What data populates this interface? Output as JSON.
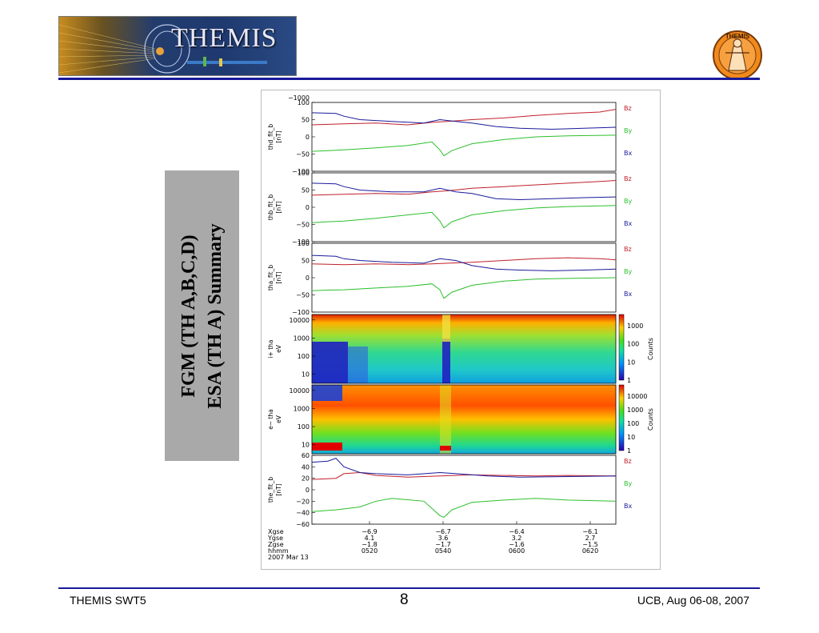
{
  "header": {
    "banner_title": "THEMIS",
    "logo_text": "THEMIS"
  },
  "sidebar_title": {
    "line1": "FGM (TH A,B,C,D)",
    "line2": "ESA (TH A) Summary"
  },
  "footer": {
    "left": "THEMIS SWT5",
    "page": "8",
    "right": "UCB, Aug 06-08, 2007"
  },
  "colors": {
    "bz": "#c0202a",
    "by": "#2cbf2c",
    "bx": "#1a1a9a",
    "rule": "#1a1a9a",
    "side_box": "#a9a9a9"
  },
  "chart_data": {
    "type": "line",
    "panels": [
      {
        "ylabel": [
          "thd_fit_b",
          "[nT]"
        ],
        "ylim": [
          -100,
          100
        ],
        "ticks": [
          {
            "v": 100,
            "t": "100"
          },
          {
            "v": 50,
            "t": "50"
          },
          {
            "v": 0,
            "t": "0"
          },
          {
            "v": -50,
            "t": "−50"
          },
          {
            "v": -100,
            "t": "−100"
          }
        ],
        "top_label": "−1000",
        "legend": [
          "Bz",
          "By",
          "Bx"
        ],
        "series": [
          {
            "name": "Bz",
            "color": "#c0202a",
            "x": [
              0,
              40,
              80,
              120,
              150,
              170,
              200,
              240,
              280,
              320,
              360,
              380
            ],
            "y": [
              35,
              38,
              40,
              35,
              42,
              45,
              50,
              55,
              62,
              68,
              72,
              80
            ]
          },
          {
            "name": "By",
            "color": "#2cbf2c",
            "x": [
              0,
              20,
              40,
              80,
              120,
              150,
              160,
              165,
              175,
              200,
              240,
              280,
              320,
              380
            ],
            "y": [
              -42,
              -40,
              -38,
              -32,
              -25,
              -15,
              -38,
              -55,
              -40,
              -20,
              -8,
              0,
              3,
              5
            ]
          },
          {
            "name": "Bx",
            "color": "#1a1a9a",
            "x": [
              0,
              30,
              40,
              60,
              100,
              140,
              160,
              180,
              200,
              230,
              260,
              300,
              340,
              380
            ],
            "y": [
              70,
              68,
              60,
              50,
              45,
              40,
              50,
              45,
              40,
              30,
              25,
              22,
              25,
              28
            ]
          }
        ]
      },
      {
        "ylabel": [
          "thb_fit_b",
          "[nT]"
        ],
        "ylim": [
          -100,
          100
        ],
        "ticks": [
          {
            "v": 100,
            "t": "100"
          },
          {
            "v": 50,
            "t": "50"
          },
          {
            "v": 0,
            "t": "0"
          },
          {
            "v": -50,
            "t": "−50"
          },
          {
            "v": -100,
            "t": "−100"
          }
        ],
        "legend": [
          "Bz",
          "By",
          "Bx"
        ],
        "series": [
          {
            "name": "Bz",
            "color": "#c0202a",
            "x": [
              0,
              40,
              80,
              120,
              150,
              170,
              200,
              240,
              280,
              320,
              360,
              380
            ],
            "y": [
              35,
              38,
              40,
              38,
              45,
              48,
              55,
              60,
              65,
              70,
              75,
              78
            ]
          },
          {
            "name": "By",
            "color": "#2cbf2c",
            "x": [
              0,
              20,
              40,
              80,
              120,
              150,
              160,
              165,
              175,
              200,
              240,
              280,
              320,
              380
            ],
            "y": [
              -45,
              -42,
              -40,
              -32,
              -22,
              -15,
              -40,
              -60,
              -42,
              -22,
              -10,
              -2,
              2,
              5
            ]
          },
          {
            "name": "Bx",
            "color": "#1a1a9a",
            "x": [
              0,
              30,
              40,
              60,
              100,
              140,
              160,
              180,
              200,
              230,
              260,
              300,
              340,
              380
            ],
            "y": [
              70,
              68,
              60,
              50,
              45,
              45,
              55,
              45,
              40,
              25,
              22,
              25,
              28,
              30
            ]
          }
        ]
      },
      {
        "ylabel": [
          "tha_fit_b",
          "[nT]"
        ],
        "ylim": [
          -100,
          100
        ],
        "ticks": [
          {
            "v": 100,
            "t": "100"
          },
          {
            "v": 50,
            "t": "50"
          },
          {
            "v": 0,
            "t": "0"
          },
          {
            "v": -50,
            "t": "−50"
          },
          {
            "v": -100,
            "t": "−100"
          }
        ],
        "legend": [
          "Bz",
          "By",
          "Bx"
        ],
        "series": [
          {
            "name": "Bz",
            "color": "#c0202a",
            "x": [
              0,
              40,
              80,
              120,
              150,
              170,
              200,
              240,
              280,
              320,
              360,
              380
            ],
            "y": [
              40,
              38,
              40,
              38,
              40,
              42,
              45,
              50,
              55,
              58,
              55,
              52
            ]
          },
          {
            "name": "By",
            "color": "#2cbf2c",
            "x": [
              0,
              20,
              40,
              80,
              120,
              150,
              160,
              165,
              175,
              200,
              240,
              280,
              320,
              380
            ],
            "y": [
              -38,
              -36,
              -35,
              -30,
              -25,
              -18,
              -35,
              -60,
              -42,
              -22,
              -10,
              -4,
              -2,
              0
            ]
          },
          {
            "name": "Bx",
            "color": "#1a1a9a",
            "x": [
              0,
              30,
              40,
              60,
              100,
              140,
              160,
              180,
              200,
              230,
              260,
              300,
              340,
              380
            ],
            "y": [
              65,
              62,
              55,
              50,
              45,
              42,
              55,
              50,
              35,
              25,
              22,
              20,
              22,
              25
            ]
          }
        ]
      },
      {
        "type": "heatmap",
        "ylabel": [
          "i+ tha",
          "eV"
        ],
        "ticks": [
          {
            "v": 10000,
            "t": "10000"
          },
          {
            "v": 1000,
            "t": "1000"
          },
          {
            "v": 100,
            "t": "100"
          },
          {
            "v": 10,
            "t": "10"
          }
        ],
        "colorbar": {
          "label": "Counts",
          "ticks": [
            "1000",
            "100",
            "10",
            "1"
          ]
        }
      },
      {
        "type": "heatmap",
        "ylabel": [
          "e− tha",
          "eV"
        ],
        "ticks": [
          {
            "v": 10000,
            "t": "10000"
          },
          {
            "v": 1000,
            "t": "1000"
          },
          {
            "v": 100,
            "t": "100"
          },
          {
            "v": 10,
            "t": "10"
          }
        ],
        "colorbar": {
          "label": "Counts",
          "ticks": [
            "10000",
            "1000",
            "100",
            "10",
            "1"
          ]
        }
      },
      {
        "ylabel": [
          "the_fit_b",
          "[nT]"
        ],
        "ylim": [
          -60,
          60
        ],
        "ticks": [
          {
            "v": 60,
            "t": "60"
          },
          {
            "v": 40,
            "t": "40"
          },
          {
            "v": 20,
            "t": "20"
          },
          {
            "v": 0,
            "t": "0"
          },
          {
            "v": -20,
            "t": "−20"
          },
          {
            "v": -40,
            "t": "−40"
          },
          {
            "v": -60,
            "t": "−60"
          }
        ],
        "legend": [
          "Bz",
          "By",
          "Bx"
        ],
        "series": [
          {
            "name": "Bz",
            "color": "#c0202a",
            "x": [
              0,
              30,
              40,
              60,
              80,
              120,
              160,
              200,
              240,
              280,
              320,
              380
            ],
            "y": [
              18,
              20,
              28,
              30,
              25,
              22,
              24,
              26,
              25,
              24,
              25,
              24
            ]
          },
          {
            "name": "By",
            "color": "#2cbf2c",
            "x": [
              0,
              30,
              60,
              80,
              100,
              140,
              160,
              165,
              175,
              200,
              240,
              280,
              320,
              380
            ],
            "y": [
              -38,
              -35,
              -30,
              -20,
              -15,
              -20,
              -45,
              -48,
              -35,
              -22,
              -18,
              -15,
              -18,
              -20
            ]
          },
          {
            "name": "Bx",
            "color": "#1a1a9a",
            "x": [
              0,
              20,
              30,
              40,
              60,
              80,
              120,
              160,
              180,
              220,
              260,
              320,
              380
            ],
            "y": [
              48,
              50,
              55,
              40,
              30,
              28,
              26,
              30,
              28,
              24,
              22,
              23,
              24
            ]
          }
        ]
      }
    ],
    "xaxis": {
      "labels_left": [
        "Xgse",
        "Ygse",
        "Zgse",
        "hhmm",
        "2007 Mar 13"
      ],
      "ticks": [
        {
          "x": 72,
          "rows": [
            "−6.9",
            "4.1",
            "−1.8",
            "0520"
          ]
        },
        {
          "x": 164,
          "rows": [
            "−6.7",
            "3.6",
            "−1.7",
            "0540"
          ]
        },
        {
          "x": 256,
          "rows": [
            "−6.4",
            "3.2",
            "−1.6",
            "0600"
          ]
        },
        {
          "x": 348,
          "rows": [
            "−6.1",
            "2.7",
            "−1.5",
            "0620"
          ]
        }
      ]
    }
  }
}
